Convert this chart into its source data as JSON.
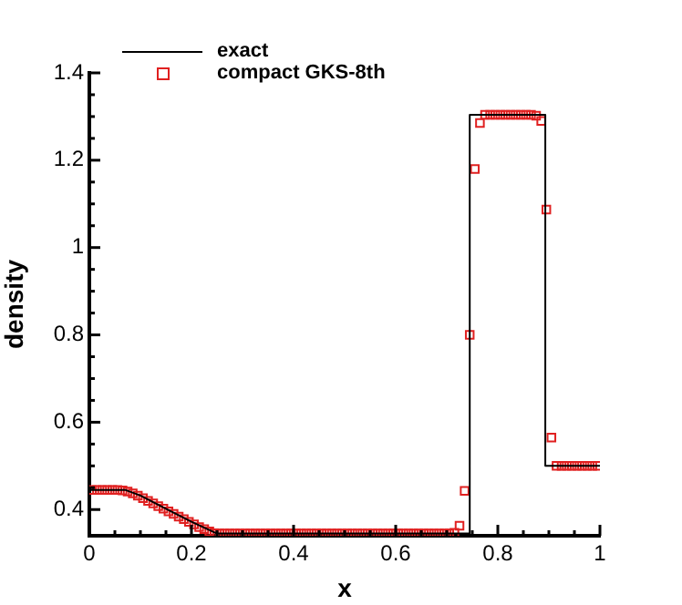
{
  "chart_data": {
    "type": "line",
    "xlabel": "x",
    "ylabel": "density",
    "xlim": [
      0,
      1
    ],
    "ylim": [
      0.34,
      1.4
    ],
    "xticks": [
      0,
      {
        "value": 0.05,
        "label": null
      },
      {
        "value": 0.1,
        "label": null
      },
      {
        "value": 0.15,
        "label": null
      },
      0.2,
      {
        "value": 0.25,
        "label": null
      },
      {
        "value": 0.3,
        "label": null
      },
      {
        "value": 0.35,
        "label": null
      },
      0.4,
      {
        "value": 0.45,
        "label": null
      },
      {
        "value": 0.5,
        "label": null
      },
      {
        "value": 0.55,
        "label": null
      },
      0.6,
      {
        "value": 0.65,
        "label": null
      },
      {
        "value": 0.7,
        "label": null
      },
      {
        "value": 0.75,
        "label": null
      },
      0.8,
      {
        "value": 0.85,
        "label": null
      },
      {
        "value": 0.9,
        "label": null
      },
      {
        "value": 0.95,
        "label": null
      },
      1
    ],
    "yticks": [
      0.4,
      {
        "value": 0.45,
        "label": null
      },
      {
        "value": 0.5,
        "label": null
      },
      {
        "value": 0.55,
        "label": null
      },
      0.6,
      {
        "value": 0.65,
        "label": null
      },
      {
        "value": 0.7,
        "label": null
      },
      {
        "value": 0.75,
        "label": null
      },
      0.8,
      {
        "value": 0.85,
        "label": null
      },
      {
        "value": 0.9,
        "label": null
      },
      {
        "value": 0.95,
        "label": null
      },
      1,
      {
        "value": 1.05,
        "label": null
      },
      {
        "value": 1.1,
        "label": null
      },
      {
        "value": 1.15,
        "label": null
      },
      1.2,
      {
        "value": 1.25,
        "label": null
      },
      {
        "value": 1.3,
        "label": null
      },
      {
        "value": 1.35,
        "label": null
      },
      1.4
    ],
    "grid": false,
    "legend": "top left",
    "series": [
      {
        "name": "exact",
        "type": "line",
        "color": "#000000",
        "marker": "none",
        "line_style": "solid",
        "x": [
          0,
          0.07,
          0.1,
          0.15,
          0.2,
          0.25,
          0.745,
          0.745,
          0.893,
          0.893,
          1
        ],
        "values": [
          0.445,
          0.445,
          0.432,
          0.402,
          0.372,
          0.345,
          0.345,
          1.304,
          1.304,
          0.5,
          0.5
        ]
      },
      {
        "name": "compact GKS-8th",
        "type": "scatter",
        "color": "#e02020",
        "marker": "square",
        "x": [
          0.005,
          0.015,
          0.025,
          0.035,
          0.045,
          0.055,
          0.065,
          0.075,
          0.085,
          0.095,
          0.105,
          0.115,
          0.125,
          0.135,
          0.145,
          0.155,
          0.165,
          0.175,
          0.185,
          0.195,
          0.205,
          0.215,
          0.225,
          0.235,
          0.245,
          0.255,
          0.265,
          0.275,
          0.285,
          0.295,
          0.305,
          0.315,
          0.325,
          0.335,
          0.345,
          0.355,
          0.365,
          0.375,
          0.385,
          0.395,
          0.405,
          0.415,
          0.425,
          0.435,
          0.445,
          0.455,
          0.465,
          0.475,
          0.485,
          0.495,
          0.505,
          0.515,
          0.525,
          0.535,
          0.545,
          0.555,
          0.565,
          0.575,
          0.585,
          0.595,
          0.605,
          0.615,
          0.625,
          0.635,
          0.645,
          0.655,
          0.665,
          0.675,
          0.685,
          0.695,
          0.705,
          0.715,
          0.725,
          0.735,
          0.745,
          0.755,
          0.765,
          0.775,
          0.785,
          0.795,
          0.805,
          0.815,
          0.825,
          0.835,
          0.845,
          0.855,
          0.865,
          0.875,
          0.885,
          0.895,
          0.905,
          0.915,
          0.925,
          0.935,
          0.945,
          0.955,
          0.965,
          0.975,
          0.985,
          0.995
        ],
        "values": [
          0.445,
          0.445,
          0.445,
          0.445,
          0.445,
          0.445,
          0.444,
          0.441,
          0.437,
          0.432,
          0.426,
          0.42,
          0.414,
          0.408,
          0.402,
          0.396,
          0.39,
          0.384,
          0.378,
          0.372,
          0.366,
          0.36,
          0.355,
          0.35,
          0.346,
          0.345,
          0.345,
          0.345,
          0.345,
          0.345,
          0.345,
          0.345,
          0.345,
          0.345,
          0.345,
          0.345,
          0.345,
          0.345,
          0.345,
          0.345,
          0.345,
          0.345,
          0.345,
          0.345,
          0.345,
          0.345,
          0.345,
          0.345,
          0.345,
          0.345,
          0.345,
          0.345,
          0.345,
          0.345,
          0.345,
          0.345,
          0.345,
          0.345,
          0.345,
          0.345,
          0.345,
          0.345,
          0.345,
          0.345,
          0.345,
          0.345,
          0.345,
          0.345,
          0.345,
          0.345,
          0.345,
          0.347,
          0.363,
          0.443,
          0.8,
          1.18,
          1.285,
          1.304,
          1.304,
          1.304,
          1.304,
          1.304,
          1.304,
          1.304,
          1.304,
          1.304,
          1.304,
          1.302,
          1.29,
          1.087,
          0.565,
          0.5,
          0.5,
          0.5,
          0.5,
          0.5,
          0.5,
          0.5,
          0.5,
          0.5
        ]
      }
    ]
  }
}
